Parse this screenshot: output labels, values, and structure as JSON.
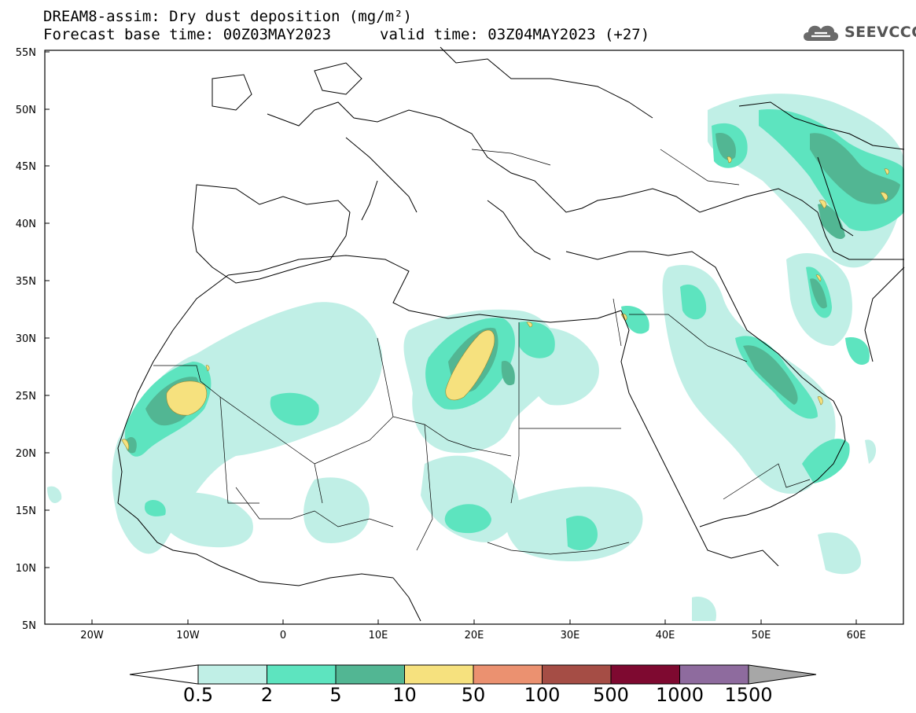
{
  "title": {
    "line1": "DREAM8-assim: Dry dust deposition (mg/m²)",
    "base_time": "Forecast base time: 00Z03MAY2023",
    "valid_time": "valid time: 03Z04MAY2023 (+27)"
  },
  "logo": {
    "text": "SEEVCCC",
    "icon": "cloud-icon"
  },
  "axes": {
    "lat_labels": [
      "55N",
      "50N",
      "45N",
      "40N",
      "35N",
      "30N",
      "25N",
      "20N",
      "15N",
      "10N",
      "5N"
    ],
    "lon_labels": [
      "20W",
      "10W",
      "0",
      "10E",
      "20E",
      "30E",
      "40E",
      "50E",
      "60E"
    ]
  },
  "colorbar": {
    "labels": [
      "0.5",
      "2",
      "5",
      "10",
      "50",
      "100",
      "500",
      "1000",
      "1500"
    ],
    "colors": [
      "#c0efe6",
      "#5de4bf",
      "#52b693",
      "#f6e17e",
      "#eb9170",
      "#a54d45",
      "#7e0930",
      "#8e6b9e",
      "#a7a7a7"
    ],
    "under_color": "#ffffff"
  },
  "dust": {
    "levels": {
      "c1": "#c0efe6",
      "c2": "#5de4bf",
      "c3": "#52b693",
      "c4": "#f6e17e"
    }
  }
}
